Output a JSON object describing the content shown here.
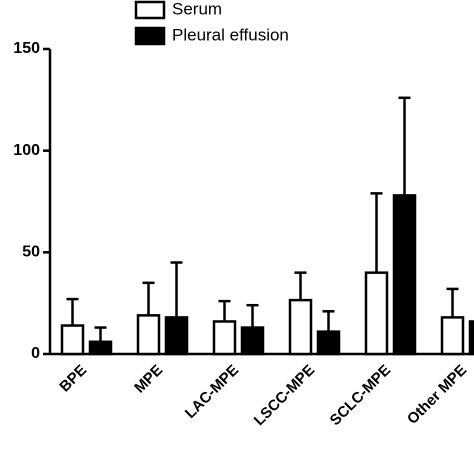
{
  "chart_data": {
    "type": "bar",
    "categories": [
      "BPE",
      "MPE",
      "LAC-MPE",
      "LSCC-MPE",
      "SCLC-MPE",
      "Other MPE"
    ],
    "series": [
      {
        "name": "Serum",
        "color": "#ffffff",
        "values": [
          14,
          19,
          16,
          26.5,
          40,
          18
        ],
        "errors": [
          13,
          16,
          10,
          13.5,
          39,
          14
        ]
      },
      {
        "name": "Pleural effusion",
        "color": "#000000",
        "values": [
          6,
          18,
          13,
          11,
          78,
          16
        ],
        "errors": [
          7,
          27,
          11,
          10,
          48,
          null
        ]
      }
    ],
    "ylim": [
      0,
      150
    ],
    "yticks": [
      0,
      50,
      100,
      150
    ]
  }
}
